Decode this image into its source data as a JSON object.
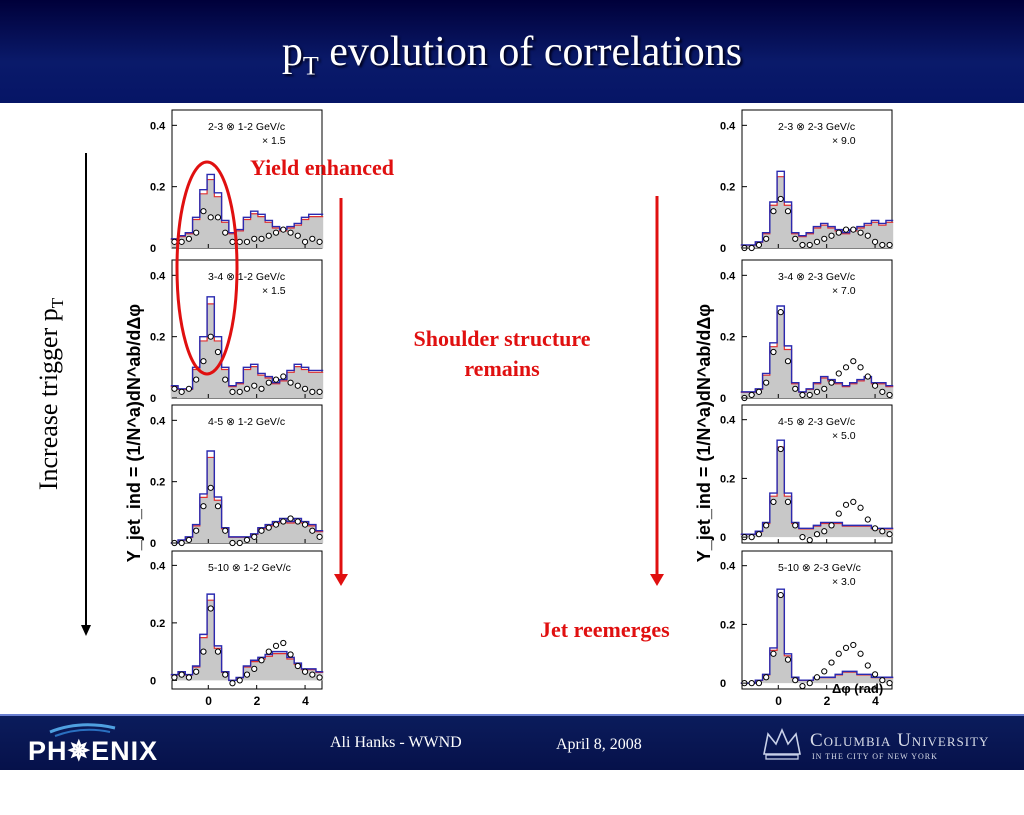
{
  "slide": {
    "title_main": "p",
    "title_sub": "T",
    "title_rest": " evolution of correlations"
  },
  "annotations": {
    "yield": "Yield enhanced",
    "shoulder_line1": "Shoulder structure",
    "shoulder_line2": "remains",
    "jet": "Jet reemerges",
    "trigger": "Increase trigger p",
    "trigger_sub": "T"
  },
  "footer": {
    "author": "Ali Hanks - WWND",
    "date": "April 8, 2008",
    "phenix_logo": "PH✵ENIX",
    "columbia_line1": "Columbia University",
    "columbia_line2": "IN THE CITY OF NEW YORK"
  },
  "colors": {
    "header": "#0a1a6a",
    "accent_red": "#e01010",
    "band_fill": "#c8c8c8",
    "hist_blue": "#2a2ab0",
    "hist_red": "#e03030"
  },
  "axis": {
    "ylabel_left": "Y_jet_ind = (1/N^a)dN^ab/dΔφ",
    "xlabel_right": "Δφ (rad)",
    "x_ticks": [
      "0",
      "2",
      "4"
    ]
  },
  "chart_data": [
    {
      "type": "line",
      "title": "2-3 ⊗ 1-2 GeV/c",
      "scale": "× 1.5",
      "yticks": [
        "0.4",
        "0.2",
        "0"
      ],
      "ylim": [
        0,
        0.45
      ],
      "xlim": [
        -1.5,
        4.7
      ],
      "x": [
        -1.4,
        -1.1,
        -0.8,
        -0.5,
        -0.2,
        0.1,
        0.4,
        0.7,
        1.0,
        1.3,
        1.6,
        1.9,
        2.2,
        2.5,
        2.8,
        3.1,
        3.4,
        3.7,
        4.0,
        4.3,
        4.6
      ],
      "series": [
        {
          "name": "",
          "values": [
            0.03,
            0.04,
            0.05,
            0.1,
            0.19,
            0.24,
            0.18,
            0.09,
            0.05,
            0.06,
            0.1,
            0.12,
            0.11,
            0.09,
            0.07,
            0.06,
            0.07,
            0.08,
            0.1,
            0.11,
            0.11
          ]
        },
        {
          "name": "",
          "values": [
            0.02,
            0.02,
            0.03,
            0.05,
            0.12,
            0.1,
            0.1,
            0.05,
            0.02,
            0.02,
            0.02,
            0.03,
            0.03,
            0.04,
            0.05,
            0.06,
            0.05,
            0.04,
            0.02,
            0.03,
            0.02
          ]
        }
      ]
    },
    {
      "type": "line",
      "title": "3-4 ⊗ 1-2 GeV/c",
      "scale": "× 1.5",
      "yticks": [
        "0.4",
        "0.2",
        "0"
      ],
      "ylim": [
        0,
        0.45
      ],
      "xlim": [
        -1.5,
        4.7
      ],
      "x": [
        -1.4,
        -1.1,
        -0.8,
        -0.5,
        -0.2,
        0.1,
        0.4,
        0.7,
        1.0,
        1.3,
        1.6,
        1.9,
        2.2,
        2.5,
        2.8,
        3.1,
        3.4,
        3.7,
        4.0,
        4.3,
        4.6
      ],
      "series": [
        {
          "name": "",
          "values": [
            0.04,
            0.03,
            0.03,
            0.1,
            0.2,
            0.33,
            0.2,
            0.1,
            0.04,
            0.05,
            0.1,
            0.11,
            0.08,
            0.07,
            0.05,
            0.06,
            0.09,
            0.11,
            0.1,
            0.09,
            0.09
          ]
        },
        {
          "name": "",
          "values": [
            0.03,
            0.02,
            0.03,
            0.06,
            0.12,
            0.2,
            0.15,
            0.06,
            0.02,
            0.02,
            0.03,
            0.04,
            0.03,
            0.05,
            0.06,
            0.07,
            0.05,
            0.04,
            0.03,
            0.02,
            0.02
          ]
        }
      ]
    },
    {
      "type": "line",
      "title": "4-5 ⊗ 1-2 GeV/c",
      "scale": "",
      "yticks": [
        "0.4",
        "0.2",
        "0"
      ],
      "ylim": [
        0,
        0.45
      ],
      "xlim": [
        -1.5,
        4.7
      ],
      "x": [
        -1.4,
        -1.1,
        -0.8,
        -0.5,
        -0.2,
        0.1,
        0.4,
        0.7,
        1.0,
        1.3,
        1.6,
        1.9,
        2.2,
        2.5,
        2.8,
        3.1,
        3.4,
        3.7,
        4.0,
        4.3,
        4.6
      ],
      "series": [
        {
          "name": "",
          "values": [
            0.0,
            0.01,
            0.02,
            0.06,
            0.16,
            0.3,
            0.15,
            0.05,
            0.02,
            0.02,
            0.02,
            0.03,
            0.05,
            0.06,
            0.07,
            0.08,
            0.07,
            0.08,
            0.07,
            0.06,
            0.04
          ]
        },
        {
          "name": "",
          "values": [
            0.0,
            0.0,
            0.01,
            0.04,
            0.12,
            0.18,
            0.12,
            0.04,
            0.0,
            0.0,
            0.01,
            0.02,
            0.04,
            0.05,
            0.06,
            0.07,
            0.08,
            0.07,
            0.06,
            0.04,
            0.02
          ]
        }
      ]
    },
    {
      "type": "line",
      "title": "5-10 ⊗ 1-2 GeV/c",
      "scale": "",
      "yticks": [
        "0.4",
        "0.2",
        "0"
      ],
      "ylim": [
        -0.03,
        0.45
      ],
      "xlim": [
        -1.5,
        4.7
      ],
      "x": [
        -1.4,
        -1.1,
        -0.8,
        -0.5,
        -0.2,
        0.1,
        0.4,
        0.7,
        1.0,
        1.3,
        1.6,
        1.9,
        2.2,
        2.5,
        2.8,
        3.1,
        3.4,
        3.7,
        4.0,
        4.3,
        4.6
      ],
      "series": [
        {
          "name": "",
          "values": [
            0.02,
            0.03,
            0.02,
            0.05,
            0.16,
            0.3,
            0.12,
            0.03,
            0.0,
            0.01,
            0.05,
            0.07,
            0.08,
            0.09,
            0.1,
            0.1,
            0.08,
            0.06,
            0.04,
            0.04,
            0.03
          ]
        },
        {
          "name": "",
          "values": [
            0.01,
            0.02,
            0.01,
            0.03,
            0.1,
            0.25,
            0.1,
            0.02,
            -0.01,
            0.0,
            0.02,
            0.04,
            0.07,
            0.1,
            0.12,
            0.13,
            0.09,
            0.05,
            0.03,
            0.02,
            0.01
          ]
        }
      ]
    },
    {
      "type": "line",
      "title": "2-3 ⊗ 2-3 GeV/c",
      "scale": "× 9.0",
      "yticks": [
        "0.4",
        "0.2",
        "0"
      ],
      "ylim": [
        0,
        0.45
      ],
      "xlim": [
        -1.5,
        4.7
      ],
      "x": [
        -1.4,
        -1.1,
        -0.8,
        -0.5,
        -0.2,
        0.1,
        0.4,
        0.7,
        1.0,
        1.3,
        1.6,
        1.9,
        2.2,
        2.5,
        2.8,
        3.1,
        3.4,
        3.7,
        4.0,
        4.3,
        4.6
      ],
      "series": [
        {
          "name": "",
          "values": [
            0.01,
            0.01,
            0.02,
            0.05,
            0.15,
            0.25,
            0.15,
            0.05,
            0.04,
            0.05,
            0.07,
            0.08,
            0.07,
            0.06,
            0.05,
            0.06,
            0.07,
            0.08,
            0.09,
            0.08,
            0.09
          ]
        },
        {
          "name": "",
          "values": [
            0.0,
            0.0,
            0.01,
            0.03,
            0.12,
            0.16,
            0.12,
            0.03,
            0.01,
            0.01,
            0.02,
            0.03,
            0.04,
            0.05,
            0.06,
            0.06,
            0.05,
            0.04,
            0.02,
            0.01,
            0.01
          ]
        }
      ]
    },
    {
      "type": "line",
      "title": "3-4 ⊗ 2-3 GeV/c",
      "scale": "× 7.0",
      "yticks": [
        "0.4",
        "0.2",
        "0"
      ],
      "ylim": [
        0,
        0.45
      ],
      "xlim": [
        -1.5,
        4.7
      ],
      "x": [
        -1.4,
        -1.1,
        -0.8,
        -0.5,
        -0.2,
        0.1,
        0.4,
        0.7,
        1.0,
        1.3,
        1.6,
        1.9,
        2.2,
        2.5,
        2.8,
        3.1,
        3.4,
        3.7,
        4.0,
        4.3,
        4.6
      ],
      "series": [
        {
          "name": "",
          "values": [
            0.02,
            0.02,
            0.03,
            0.08,
            0.18,
            0.3,
            0.17,
            0.05,
            0.02,
            0.03,
            0.05,
            0.07,
            0.06,
            0.05,
            0.04,
            0.05,
            0.06,
            0.07,
            0.05,
            0.05,
            0.04
          ]
        },
        {
          "name": "",
          "values": [
            0.0,
            0.01,
            0.02,
            0.05,
            0.15,
            0.28,
            0.12,
            0.03,
            0.01,
            0.01,
            0.02,
            0.03,
            0.05,
            0.08,
            0.1,
            0.12,
            0.1,
            0.07,
            0.04,
            0.02,
            0.01
          ]
        }
      ]
    },
    {
      "type": "line",
      "title": "4-5 ⊗ 2-3 GeV/c",
      "scale": "× 5.0",
      "yticks": [
        "0.4",
        "0.2",
        "0"
      ],
      "ylim": [
        -0.02,
        0.45
      ],
      "xlim": [
        -1.5,
        4.7
      ],
      "x": [
        -1.4,
        -1.1,
        -0.8,
        -0.5,
        -0.2,
        0.1,
        0.4,
        0.7,
        1.0,
        1.3,
        1.6,
        1.9,
        2.2,
        2.5,
        2.8,
        3.1,
        3.4,
        3.7,
        4.0,
        4.3,
        4.6
      ],
      "series": [
        {
          "name": "",
          "values": [
            0.01,
            0.01,
            0.02,
            0.05,
            0.15,
            0.33,
            0.15,
            0.05,
            0.03,
            0.03,
            0.04,
            0.05,
            0.05,
            0.05,
            0.04,
            0.04,
            0.04,
            0.04,
            0.03,
            0.03,
            0.03
          ]
        },
        {
          "name": "",
          "values": [
            0.0,
            0.0,
            0.01,
            0.04,
            0.12,
            0.3,
            0.12,
            0.04,
            0.0,
            -0.01,
            0.01,
            0.02,
            0.04,
            0.08,
            0.11,
            0.12,
            0.1,
            0.06,
            0.03,
            0.02,
            0.01
          ]
        }
      ]
    },
    {
      "type": "line",
      "title": "5-10 ⊗ 2-3 GeV/c",
      "scale": "× 3.0",
      "yticks": [
        "0.4",
        "0.2",
        "0"
      ],
      "ylim": [
        -0.02,
        0.45
      ],
      "xlim": [
        -1.5,
        4.7
      ],
      "x": [
        -1.4,
        -1.1,
        -0.8,
        -0.5,
        -0.2,
        0.1,
        0.4,
        0.7,
        1.0,
        1.3,
        1.6,
        1.9,
        2.2,
        2.5,
        2.8,
        3.1,
        3.4,
        3.7,
        4.0,
        4.3,
        4.6
      ],
      "series": [
        {
          "name": "",
          "values": [
            0.0,
            0.0,
            0.01,
            0.03,
            0.12,
            0.32,
            0.1,
            0.02,
            0.01,
            0.01,
            0.02,
            0.02,
            0.02,
            0.03,
            0.04,
            0.04,
            0.03,
            0.03,
            0.02,
            0.02,
            0.02
          ]
        },
        {
          "name": "",
          "values": [
            0.0,
            0.0,
            0.0,
            0.02,
            0.1,
            0.3,
            0.08,
            0.01,
            -0.01,
            0.0,
            0.02,
            0.04,
            0.07,
            0.1,
            0.12,
            0.13,
            0.1,
            0.06,
            0.03,
            0.01,
            0.0
          ]
        }
      ]
    }
  ]
}
